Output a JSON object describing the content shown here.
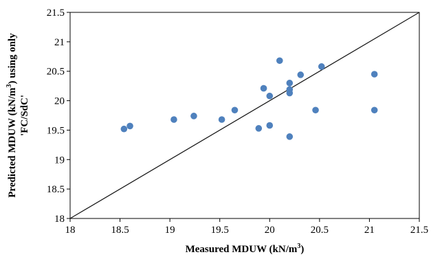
{
  "chart_data": {
    "type": "scatter",
    "xlabel": {
      "before": "Measured MDUW (kN/m",
      "sup": "3",
      "after": ")"
    },
    "ylabel": {
      "line1_before": "Predicted MDUW (kN/m",
      "line1_sup": "3",
      "line1_after": ") using only",
      "line2": "'FC/SdC'"
    },
    "xlim": [
      18,
      21.5
    ],
    "ylim": [
      18,
      21.5
    ],
    "xticks": [
      "18",
      "18.5",
      "19",
      "19.5",
      "20",
      "20.5",
      "21",
      "21.5"
    ],
    "yticks": [
      "18",
      "18.5",
      "19",
      "19.5",
      "20",
      "20.5",
      "21",
      "21.5"
    ],
    "reference_line": {
      "from": [
        18,
        18
      ],
      "to": [
        21.5,
        21.5
      ],
      "color": "#1a1a1a"
    },
    "grid": false,
    "legend": "none",
    "marker_color": "#4f81bd",
    "points": [
      {
        "x": 18.54,
        "y": 19.52
      },
      {
        "x": 18.6,
        "y": 19.57
      },
      {
        "x": 19.04,
        "y": 19.68
      },
      {
        "x": 19.24,
        "y": 19.74
      },
      {
        "x": 19.52,
        "y": 19.68
      },
      {
        "x": 19.65,
        "y": 19.84
      },
      {
        "x": 19.89,
        "y": 19.53
      },
      {
        "x": 19.94,
        "y": 20.21
      },
      {
        "x": 20.0,
        "y": 20.08
      },
      {
        "x": 20.0,
        "y": 19.58
      },
      {
        "x": 20.1,
        "y": 20.68
      },
      {
        "x": 20.2,
        "y": 20.3
      },
      {
        "x": 20.2,
        "y": 20.19
      },
      {
        "x": 20.2,
        "y": 20.13
      },
      {
        "x": 20.2,
        "y": 19.39
      },
      {
        "x": 20.31,
        "y": 20.44
      },
      {
        "x": 20.46,
        "y": 19.84
      },
      {
        "x": 20.52,
        "y": 20.58
      },
      {
        "x": 21.05,
        "y": 20.45
      },
      {
        "x": 21.05,
        "y": 19.84
      }
    ]
  }
}
